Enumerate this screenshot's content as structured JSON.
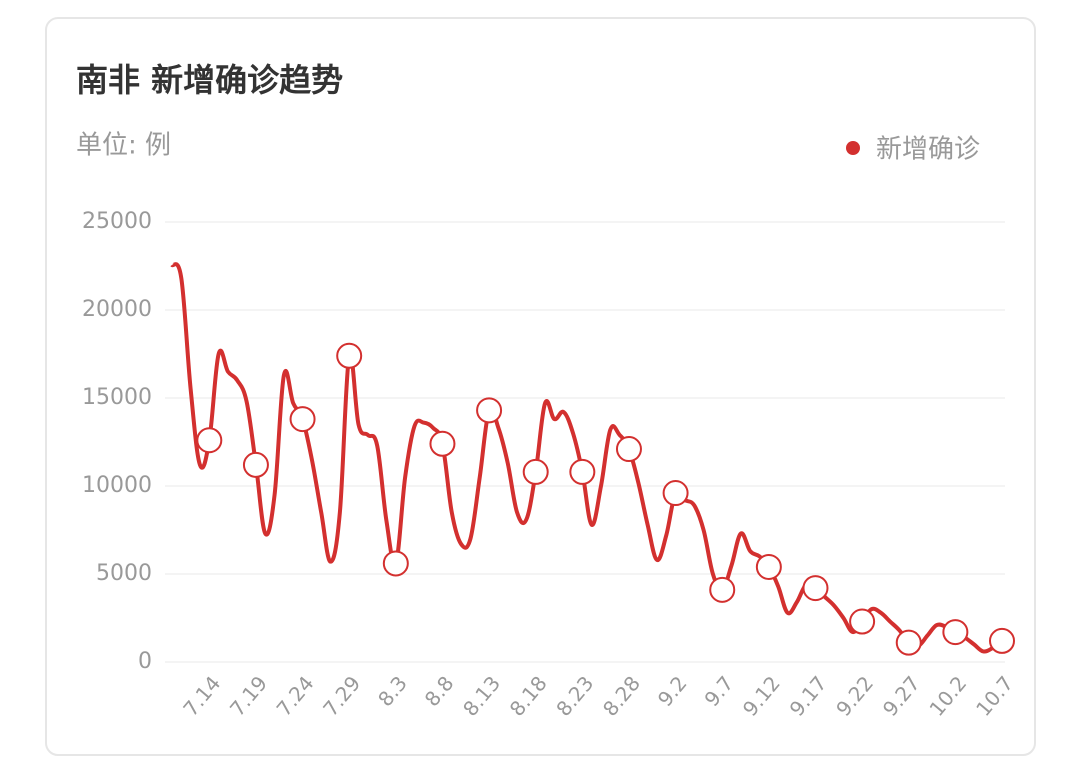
{
  "chart_data": {
    "type": "line",
    "title": "南非 新增确诊趋势",
    "subtitle": "单位: 例",
    "categories": [
      null,
      null,
      null,
      null,
      "7.14",
      null,
      null,
      null,
      null,
      "7.19",
      null,
      null,
      null,
      null,
      "7.24",
      null,
      null,
      null,
      null,
      "7.29",
      null,
      null,
      null,
      null,
      "8.3",
      null,
      null,
      null,
      null,
      "8.8",
      null,
      null,
      null,
      null,
      "8.13",
      null,
      null,
      null,
      null,
      "8.18",
      null,
      null,
      null,
      null,
      "8.23",
      null,
      null,
      null,
      null,
      "8.28",
      null,
      null,
      null,
      null,
      "9.2",
      null,
      null,
      null,
      null,
      "9.7",
      null,
      null,
      null,
      null,
      "9.12",
      null,
      null,
      null,
      null,
      "9.17",
      null,
      null,
      null,
      null,
      "9.22",
      null,
      null,
      null,
      null,
      "9.27",
      null,
      null,
      null,
      null,
      "10.2",
      null,
      null,
      null,
      null,
      "10.7"
    ],
    "series": [
      {
        "name": "新增确诊",
        "color": "#d3302f",
        "values": [
          22560,
          21800,
          15500,
          11200,
          12600,
          17500,
          16500,
          16000,
          14800,
          11200,
          7300,
          9500,
          16300,
          14700,
          13800,
          11500,
          8500,
          5700,
          8500,
          17400,
          13500,
          12900,
          12300,
          8000,
          5600,
          10500,
          13400,
          13600,
          13300,
          12400,
          8500,
          6700,
          7000,
          10500,
          14300,
          13300,
          11300,
          8500,
          8100,
          10800,
          14700,
          13800,
          14200,
          13000,
          10800,
          7800,
          10000,
          13200,
          12900,
          12100,
          10200,
          7800,
          5800,
          7200,
          9600,
          9200,
          8900,
          7500,
          5000,
          4100,
          5500,
          7300,
          6300,
          6000,
          5400,
          4300,
          2800,
          3400,
          4400,
          4200,
          3700,
          3200,
          2500,
          1700,
          2300,
          3000,
          2800,
          2300,
          1800,
          1100,
          900,
          1500,
          2100,
          2000,
          1700,
          1400,
          1000,
          600,
          800,
          1200
        ]
      }
    ],
    "ylim": [
      0,
      25000
    ],
    "yticks": [
      0,
      5000,
      10000,
      15000,
      20000,
      25000
    ],
    "grid": true,
    "legend": "top-right"
  }
}
